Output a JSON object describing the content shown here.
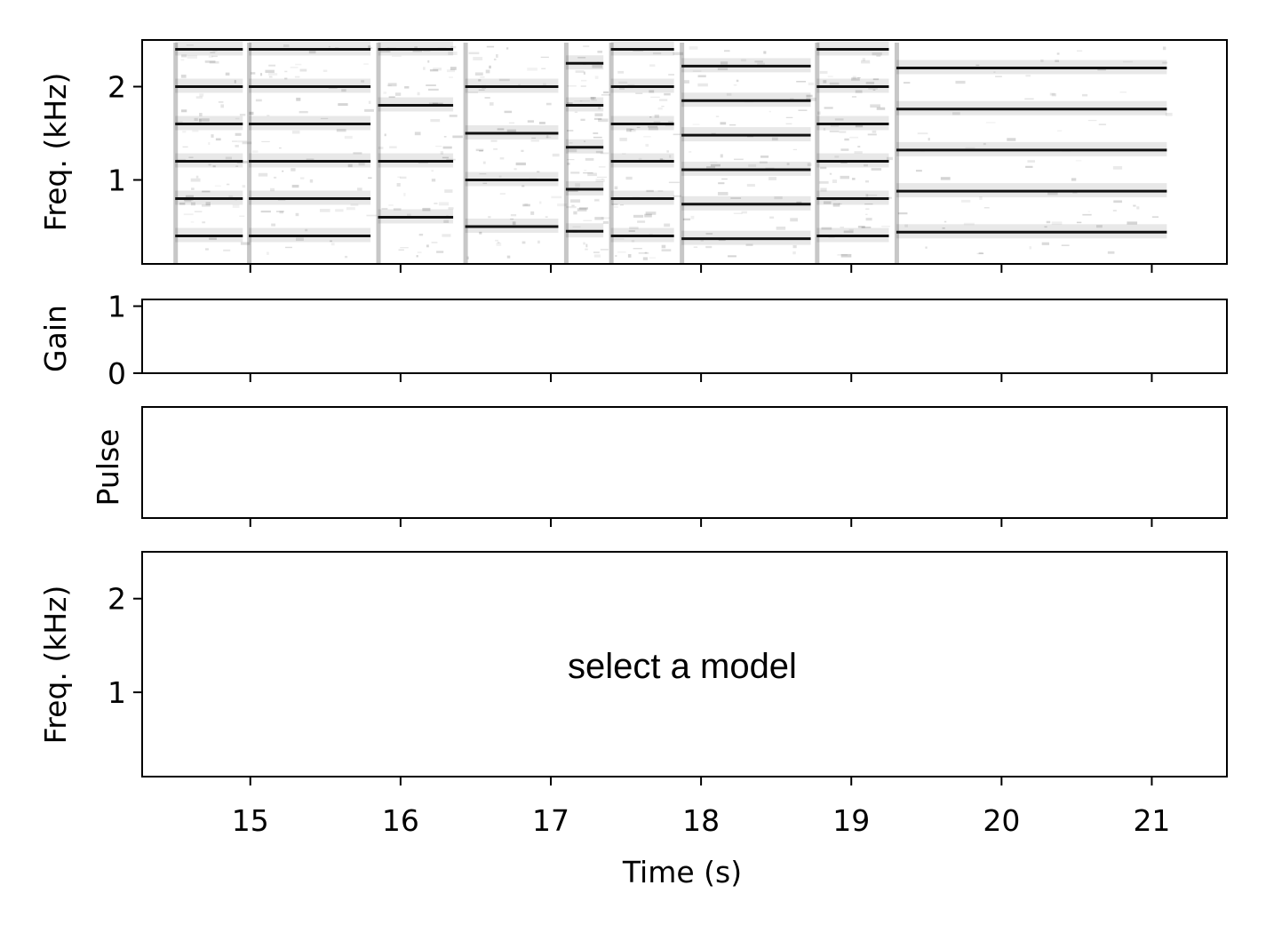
{
  "chart_data": [
    {
      "type": "heatmap",
      "title": "",
      "xlabel": "",
      "ylabel": "Freq. (kHz)",
      "xlim": [
        14.28,
        21.5
      ],
      "ylim": [
        0.1,
        2.5
      ],
      "yticks": [
        1,
        2
      ],
      "ytick_labels": [
        "1",
        "2"
      ],
      "colormap": "grayscale (dark = high energy)",
      "segments": [
        {
          "start": 14.5,
          "end": 14.95,
          "f0": 0.4,
          "harmonics": 6
        },
        {
          "start": 14.99,
          "end": 15.8,
          "f0": 0.4,
          "harmonics": 6
        },
        {
          "start": 15.85,
          "end": 16.35,
          "f0": 0.6,
          "harmonics": 4
        },
        {
          "start": 16.43,
          "end": 17.05,
          "f0": 0.5,
          "harmonics": 5
        },
        {
          "start": 17.1,
          "end": 17.35,
          "f0": 0.45,
          "harmonics": 5
        },
        {
          "start": 17.4,
          "end": 17.82,
          "f0": 0.4,
          "harmonics": 6
        },
        {
          "start": 17.87,
          "end": 18.73,
          "f0": 0.37,
          "harmonics": 6
        },
        {
          "start": 18.77,
          "end": 19.25,
          "f0": 0.4,
          "harmonics": 6
        },
        {
          "start": 19.3,
          "end": 21.1,
          "f0": 0.44,
          "harmonics": 5
        }
      ]
    },
    {
      "type": "line",
      "title": "",
      "xlabel": "",
      "ylabel": "Gain",
      "xlim": [
        14.28,
        21.5
      ],
      "ylim": [
        0,
        1.1
      ],
      "yticks": [
        0,
        1
      ],
      "ytick_labels": [
        "0",
        "1"
      ],
      "series": []
    },
    {
      "type": "line",
      "title": "",
      "xlabel": "",
      "ylabel": "Pulse",
      "xlim": [
        14.28,
        21.5
      ],
      "yticks": [],
      "series": []
    },
    {
      "type": "heatmap",
      "title": "",
      "xlabel": "Time (s)",
      "ylabel": "Freq. (kHz)",
      "xlim": [
        14.28,
        21.5
      ],
      "ylim": [
        0.1,
        2.5
      ],
      "yticks": [
        1,
        2
      ],
      "ytick_labels": [
        "1",
        "2"
      ],
      "xticks": [
        15,
        16,
        17,
        18,
        19,
        20,
        21
      ],
      "xtick_labels": [
        "15",
        "16",
        "17",
        "18",
        "19",
        "20",
        "21"
      ],
      "annotation": "select a model"
    }
  ]
}
